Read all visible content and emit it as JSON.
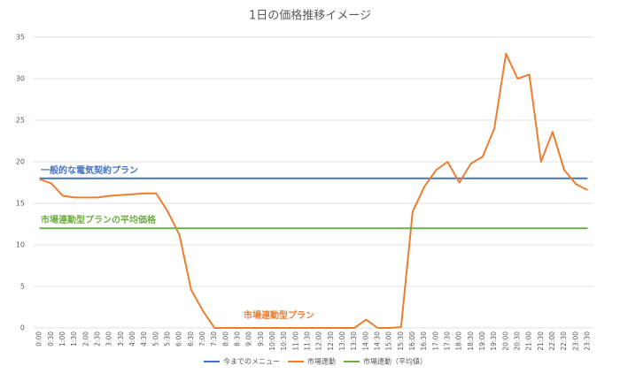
{
  "chart_data": {
    "type": "line",
    "title": "1日の価格推移イメージ",
    "categories": [
      "0:00",
      "0:30",
      "1:00",
      "1:30",
      "2:00",
      "2:30",
      "3:00",
      "3:30",
      "4:00",
      "4:30",
      "5:00",
      "5:30",
      "6:00",
      "6:30",
      "7:00",
      "7:30",
      "8:00",
      "8:30",
      "9:00",
      "9:30",
      "10:00",
      "10:30",
      "11:00",
      "11:30",
      "12:00",
      "12:30",
      "13:00",
      "13:30",
      "14:00",
      "14:30",
      "15:00",
      "15:30",
      "16:00",
      "16:30",
      "17:00",
      "17:30",
      "18:00",
      "18:30",
      "19:00",
      "19:30",
      "20:00",
      "20:30",
      "21:00",
      "21:30",
      "22:00",
      "22:30",
      "23:00",
      "23:30"
    ],
    "series": [
      {
        "name": "今までのメニュー",
        "color": "#4472c4",
        "values": [
          18,
          18,
          18,
          18,
          18,
          18,
          18,
          18,
          18,
          18,
          18,
          18,
          18,
          18,
          18,
          18,
          18,
          18,
          18,
          18,
          18,
          18,
          18,
          18,
          18,
          18,
          18,
          18,
          18,
          18,
          18,
          18,
          18,
          18,
          18,
          18,
          18,
          18,
          18,
          18,
          18,
          18,
          18,
          18,
          18,
          18,
          18,
          18
        ]
      },
      {
        "name": "市場連動",
        "color": "#ed7d31",
        "values": [
          17.9,
          17.4,
          15.9,
          15.7,
          15.7,
          15.7,
          15.9,
          16.0,
          16.1,
          16.2,
          16.2,
          14.0,
          11.2,
          4.6,
          2.1,
          0,
          0,
          0,
          0,
          0,
          0,
          0,
          0,
          0,
          0,
          0,
          0,
          0,
          1.0,
          0,
          0,
          0.1,
          14.0,
          17.0,
          19.0,
          20.0,
          17.5,
          19.8,
          20.6,
          24.0,
          33.0,
          30.0,
          30.5,
          20.0,
          23.6,
          19.0,
          17.3,
          16.6
        ]
      },
      {
        "name": "市場連動（平均値）",
        "color": "#70ad47",
        "values": [
          12,
          12,
          12,
          12,
          12,
          12,
          12,
          12,
          12,
          12,
          12,
          12,
          12,
          12,
          12,
          12,
          12,
          12,
          12,
          12,
          12,
          12,
          12,
          12,
          12,
          12,
          12,
          12,
          12,
          12,
          12,
          12,
          12,
          12,
          12,
          12,
          12,
          12,
          12,
          12,
          12,
          12,
          12,
          12,
          12,
          12,
          12,
          12
        ]
      }
    ],
    "ylim": [
      0,
      35
    ],
    "yticks": [
      0,
      5,
      10,
      15,
      20,
      25,
      30,
      35
    ],
    "grid": true,
    "annotations": [
      {
        "text": "一般的な電気契約プラン",
        "color": "#4472c4"
      },
      {
        "text": "市場連動型プランの平均価格",
        "color": "#70ad47"
      },
      {
        "text": "市場連動型プラン",
        "color": "#ed7d31"
      }
    ]
  }
}
